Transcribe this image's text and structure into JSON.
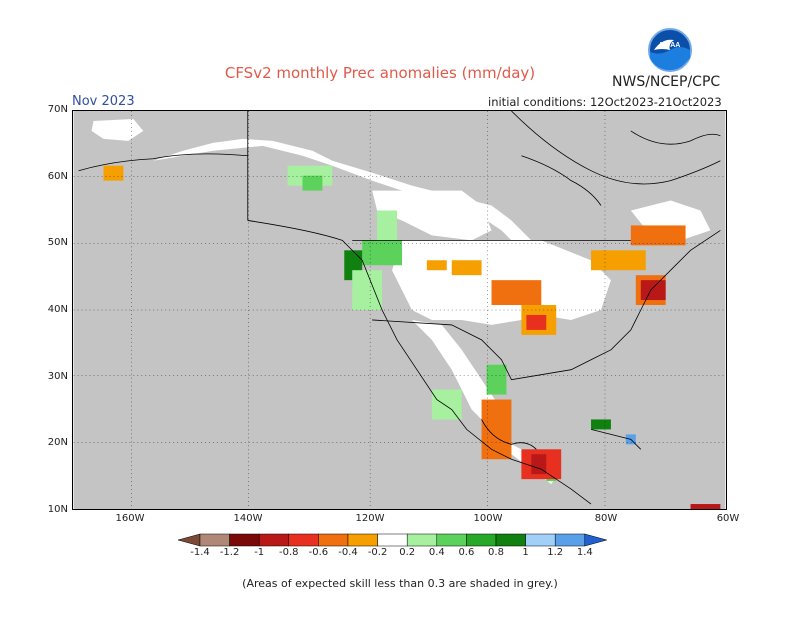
{
  "title": "CFSv2 monthly Prec anomalies (mm/day)",
  "agency": "NWS/NCEP/CPC",
  "logo_text": "NOAA",
  "forecast_month": "Nov 2023",
  "initial_conditions": "initial conditions: 12Oct2023-21Oct2023",
  "lat_labels": [
    "70N",
    "60N",
    "50N",
    "40N",
    "30N",
    "20N",
    "10N"
  ],
  "lon_labels": [
    "160W",
    "140W",
    "120W",
    "100W",
    "80W",
    "60W"
  ],
  "colorbar": {
    "labels": [
      "-1.4",
      "-1.2",
      "-1",
      "-0.8",
      "-0.6",
      "-0.4",
      "-0.2",
      "0.2",
      "0.4",
      "0.6",
      "0.8",
      "1",
      "1.2",
      "1.4"
    ],
    "colors": [
      "#7b4a36",
      "#b08878",
      "#7a0a0a",
      "#b81818",
      "#e83020",
      "#f07010",
      "#f5a000",
      "#ffffff",
      "#a6f0a0",
      "#5cd25c",
      "#28a828",
      "#108010",
      "#a0d0f8",
      "#5aa0e8",
      "#2060d0"
    ]
  },
  "colors": {
    "skill_mask_grey": "#c4c4c4",
    "land": "#ffffff",
    "coastline": "#000000"
  },
  "footnote": "(Areas of expected skill less than 0.3 are shaded in grey.)"
}
